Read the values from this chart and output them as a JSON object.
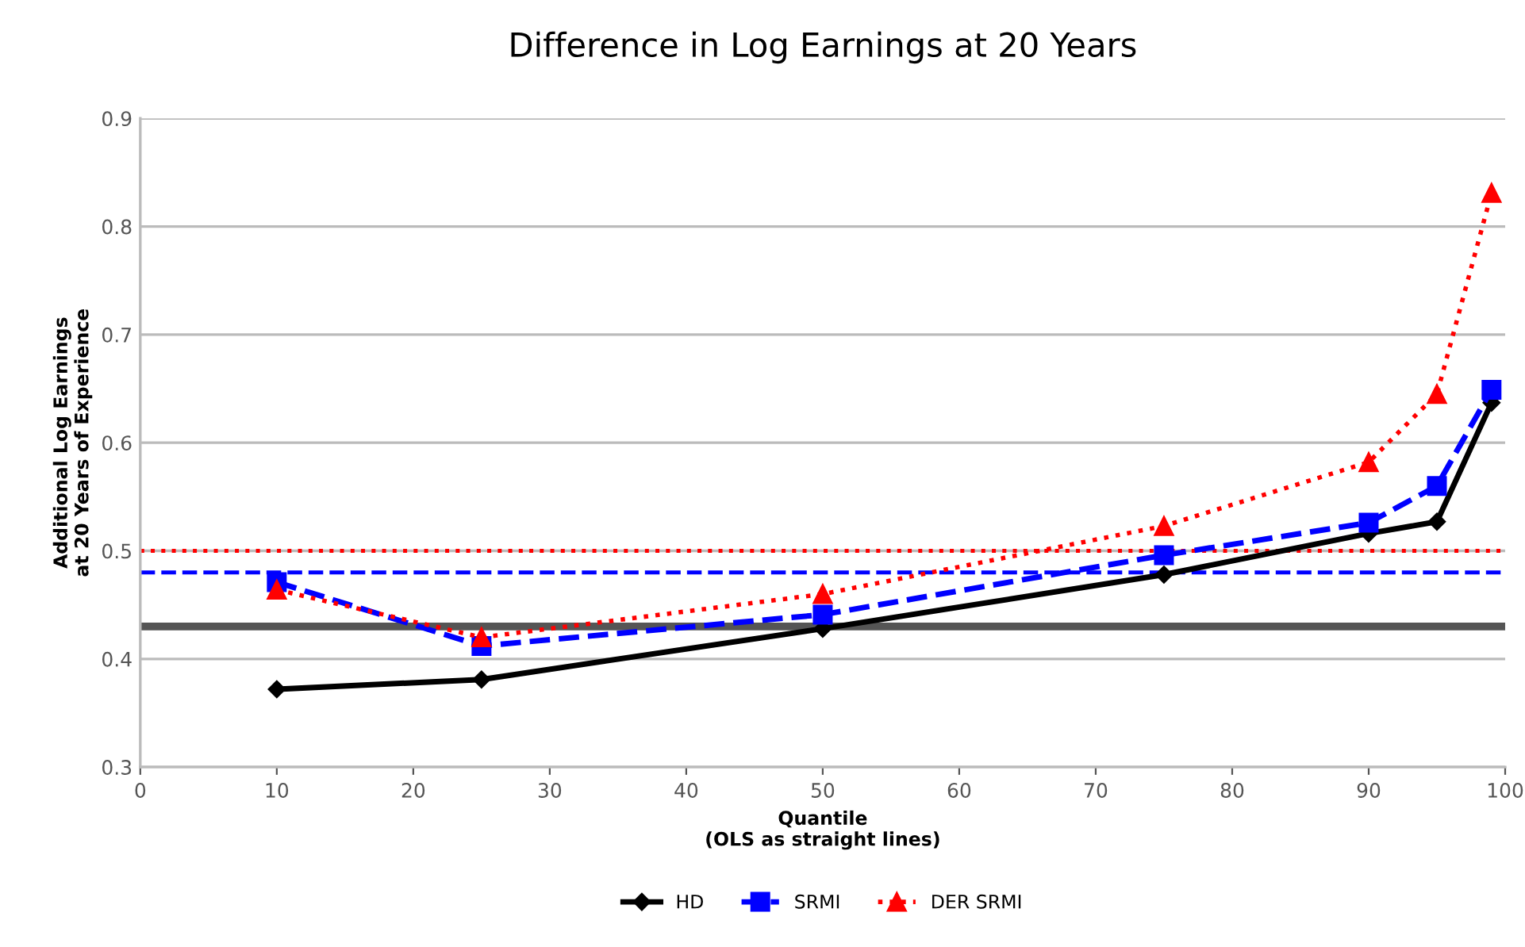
{
  "chart_data": {
    "type": "line",
    "title": "Difference in Log Earnings at 20 Years",
    "xlabel": "Quantile\n(OLS as straight lines)",
    "ylabel": "Additional Log Earnings\nat 20 Years of Experience",
    "x": [
      10,
      25,
      50,
      75,
      90,
      95,
      99
    ],
    "series": [
      {
        "name": "HD",
        "color": "#000000",
        "marker": "diamond",
        "line_style": "solid",
        "values": [
          0.372,
          0.381,
          0.428,
          0.478,
          0.516,
          0.527,
          0.637
        ]
      },
      {
        "name": "SRMI",
        "color": "#0000ff",
        "marker": "square",
        "line_style": "dashed",
        "values": [
          0.471,
          0.412,
          0.441,
          0.496,
          0.526,
          0.56,
          0.649
        ]
      },
      {
        "name": "DER SRMI",
        "color": "#ff0000",
        "marker": "triangle",
        "line_style": "dotted",
        "values": [
          0.464,
          0.42,
          0.46,
          0.523,
          0.582,
          0.645,
          0.831
        ]
      }
    ],
    "ref_lines": [
      {
        "axis": "y",
        "value": 0.43,
        "color": "#555555",
        "line_style": "solid"
      },
      {
        "axis": "y",
        "value": 0.48,
        "color": "#0000ff",
        "line_style": "dashed"
      },
      {
        "axis": "y",
        "value": 0.5,
        "color": "#ff0000",
        "line_style": "dotted"
      }
    ],
    "xlim": [
      0,
      100
    ],
    "xticks": [
      0,
      10,
      20,
      30,
      40,
      50,
      60,
      70,
      80,
      90,
      100
    ],
    "ylim": [
      0.3,
      0.9
    ],
    "yticks": [
      0.3,
      0.4,
      0.5,
      0.6,
      0.7,
      0.8,
      0.9
    ],
    "grid": "y",
    "legend": "bottom"
  }
}
